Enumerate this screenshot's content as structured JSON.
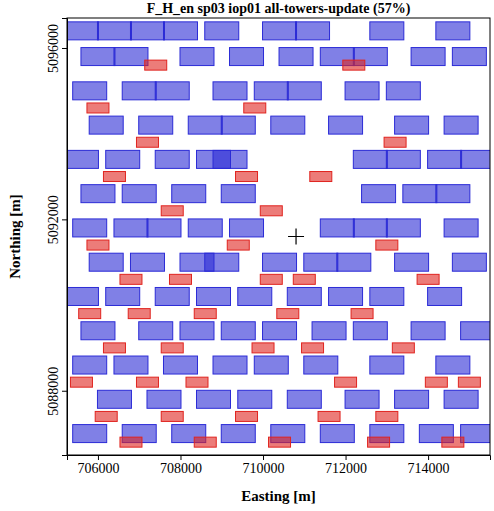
{
  "chart_data": {
    "type": "scatter",
    "title": "F_H_en sp03 iop01 all-towers-update (57%)",
    "x_label": "Easting [m]",
    "y_label": "Northing [m]",
    "xlim": [
      705250,
      715500
    ],
    "ylim": [
      5086500,
      5096700
    ],
    "xticks": [
      706000,
      708000,
      710000,
      712000,
      714000
    ],
    "yticks": [
      5088000,
      5092000,
      5096000
    ],
    "grid": false,
    "series": [
      {
        "color": "#2b2bd6",
        "marker": "square",
        "x": [
          705600,
          706400,
          707200,
          708000,
          709000,
          710400,
          711200,
          713000,
          714600,
          706000,
          706800,
          708400,
          709600,
          710800,
          711800,
          712600,
          714000,
          715000,
          705800,
          707000,
          707800,
          709200,
          710200,
          711000,
          712400,
          713400,
          706200,
          707400,
          708600,
          709400,
          710600,
          712000,
          713600,
          714800,
          705600,
          706600,
          707800,
          708800,
          709200,
          712600,
          713400,
          714400,
          715200,
          706000,
          707000,
          708200,
          709400,
          712800,
          713800,
          714600,
          705800,
          706800,
          707600,
          708600,
          709600,
          711800,
          712600,
          713400,
          714800,
          706200,
          707200,
          708400,
          709000,
          710400,
          711400,
          712200,
          713600,
          715000,
          705600,
          706600,
          707800,
          708800,
          709800,
          711000,
          712000,
          713000,
          714400,
          706000,
          707400,
          708400,
          709400,
          710400,
          711600,
          712600,
          714000,
          715200,
          705800,
          706800,
          708000,
          709200,
          710200,
          711400,
          713000,
          714600,
          706400,
          707600,
          708800,
          709800,
          711000,
          712400,
          713600,
          714800,
          705800,
          707000,
          708200,
          709400,
          710600,
          711800,
          713000,
          714200,
          715200
        ],
        "values": [
          5096400,
          5096400,
          5096400,
          5096400,
          5096400,
          5096400,
          5096400,
          5096400,
          5096400,
          5095800,
          5095800,
          5095800,
          5095800,
          5095800,
          5095800,
          5095800,
          5095800,
          5095800,
          5095000,
          5095000,
          5095000,
          5095000,
          5095000,
          5095000,
          5095000,
          5095000,
          5094200,
          5094200,
          5094200,
          5094200,
          5094200,
          5094200,
          5094200,
          5094200,
          5093400,
          5093400,
          5093400,
          5093400,
          5093400,
          5093400,
          5093400,
          5093400,
          5093400,
          5092600,
          5092600,
          5092600,
          5092600,
          5092600,
          5092600,
          5092600,
          5091800,
          5091800,
          5091800,
          5091800,
          5091800,
          5091800,
          5091800,
          5091800,
          5091800,
          5091000,
          5091000,
          5091000,
          5091000,
          5091000,
          5091000,
          5091000,
          5091000,
          5091000,
          5090200,
          5090200,
          5090200,
          5090200,
          5090200,
          5090200,
          5090200,
          5090200,
          5090200,
          5089400,
          5089400,
          5089400,
          5089400,
          5089400,
          5089400,
          5089400,
          5089400,
          5089400,
          5088600,
          5088600,
          5088600,
          5088600,
          5088600,
          5088600,
          5088600,
          5088600,
          5087800,
          5087800,
          5087800,
          5087800,
          5087800,
          5087800,
          5087800,
          5087800,
          5087000,
          5087000,
          5087000,
          5087000,
          5087000,
          5087000,
          5087000,
          5087000,
          5087000
        ]
      },
      {
        "color": "#e0241f",
        "marker": "square",
        "x": [
          707400,
          712200,
          706000,
          709800,
          707200,
          713200,
          706400,
          709600,
          711400,
          707800,
          710200,
          706000,
          709400,
          713000,
          706800,
          708000,
          710200,
          711000,
          714000,
          705800,
          707000,
          708600,
          710600,
          712400,
          706400,
          707800,
          710000,
          711200,
          713400,
          705600,
          707200,
          708400,
          712000,
          714200,
          715000,
          706200,
          707800,
          709600,
          711600,
          713000,
          706800,
          708600,
          710400,
          712800,
          714600
        ],
        "values": [
          5095600,
          5095600,
          5094600,
          5094600,
          5093800,
          5093800,
          5093000,
          5093000,
          5093000,
          5092200,
          5092200,
          5091400,
          5091400,
          5091400,
          5090600,
          5090600,
          5090600,
          5090600,
          5090600,
          5089800,
          5089800,
          5089800,
          5089800,
          5089800,
          5089000,
          5089000,
          5089000,
          5089000,
          5089000,
          5088200,
          5088200,
          5088200,
          5088200,
          5088200,
          5088200,
          5087400,
          5087400,
          5087400,
          5087400,
          5087400,
          5086800,
          5086800,
          5086800,
          5086800,
          5086800
        ]
      },
      {
        "color": "#000000",
        "marker": "cross",
        "x": [
          710800
        ],
        "values": [
          5091600
        ]
      }
    ]
  }
}
